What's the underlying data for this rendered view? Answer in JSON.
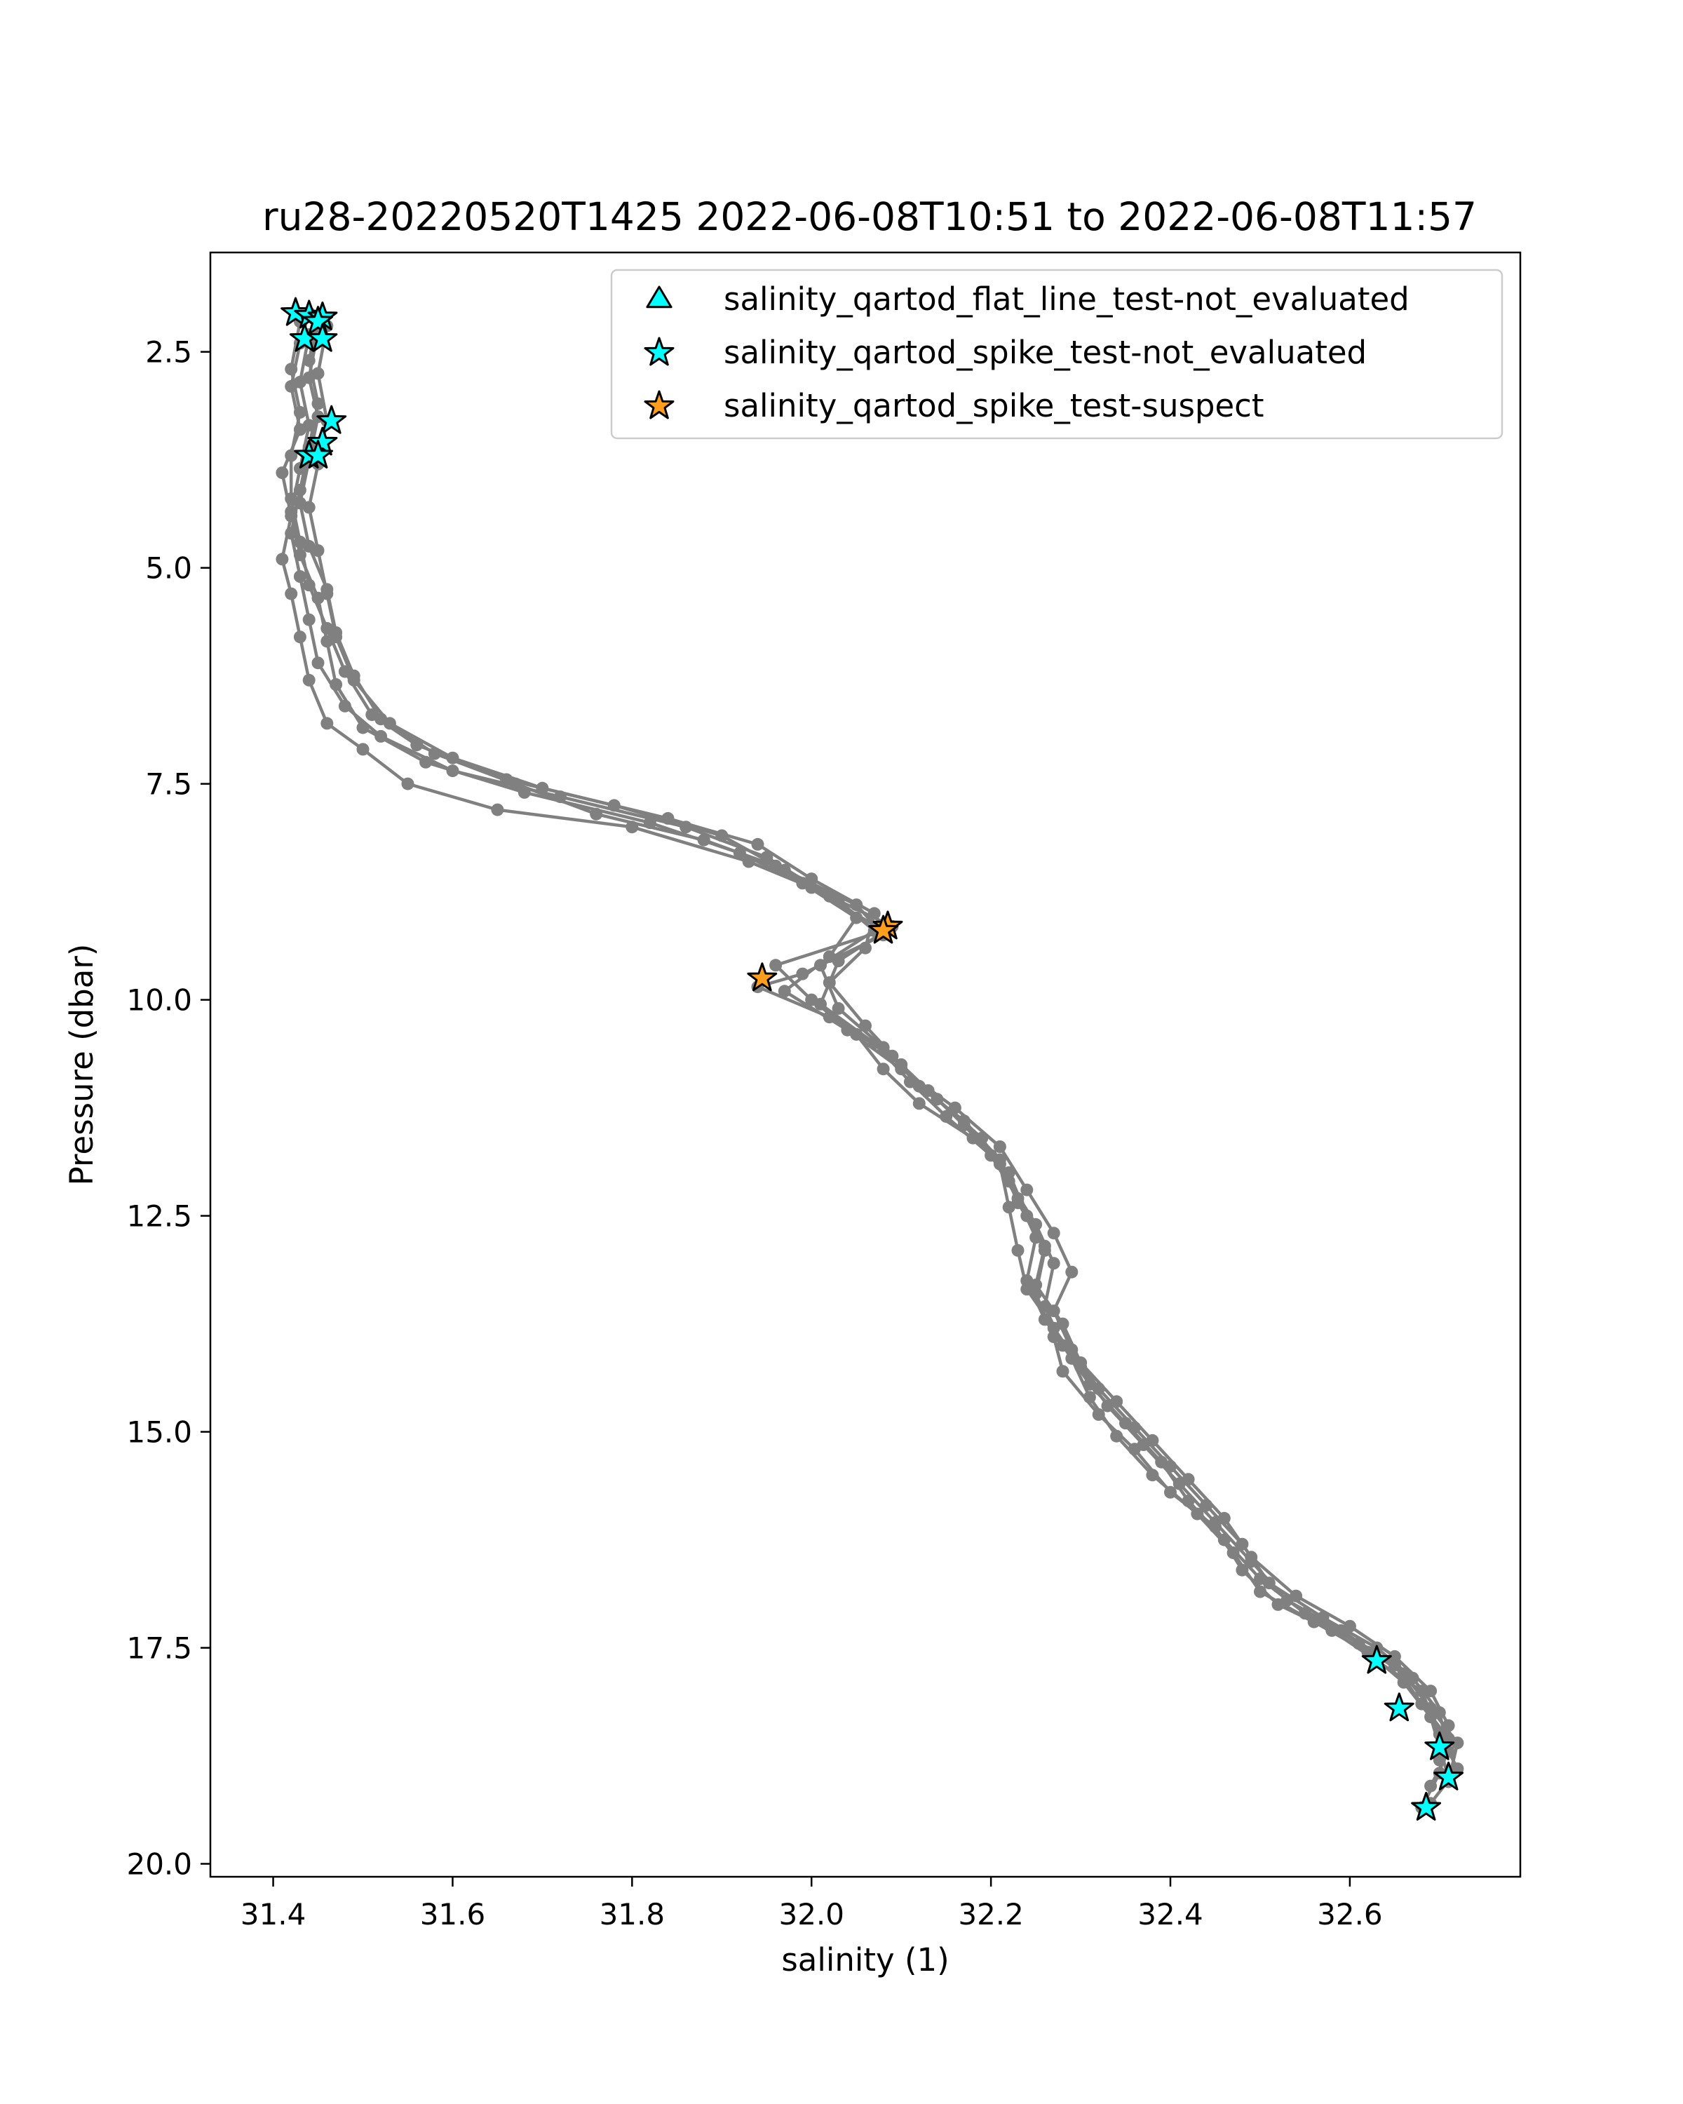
{
  "chart_data": {
    "type": "scatter",
    "title": "ru28-20220520T1425 2022-06-08T10:51 to 2022-06-08T11:57",
    "xlabel": "salinity (1)",
    "ylabel": "Pressure (dbar)",
    "xlim": [
      31.33,
      32.79
    ],
    "ylim": [
      20.15,
      1.35
    ],
    "y_inverted": true,
    "grid": false,
    "legend_position": "top-right",
    "x_ticks": [
      "31.4",
      "31.6",
      "31.8",
      "32.0",
      "32.2",
      "32.4",
      "32.6"
    ],
    "y_ticks": [
      "2.5",
      "5.0",
      "7.5",
      "10.0",
      "12.5",
      "15.0",
      "17.5",
      "20.0"
    ],
    "colors": {
      "profile_line": "#808080",
      "not_evaluated": "#00ffff",
      "suspect": "#ff9e1c",
      "marker_edge": "#000000"
    },
    "legend": [
      {
        "label": "salinity_qartod_flat_line_test-not_evaluated",
        "marker": "triangle",
        "color": "#00ffff"
      },
      {
        "label": "salinity_qartod_spike_test-not_evaluated",
        "marker": "star",
        "color": "#00ffff"
      },
      {
        "label": "salinity_qartod_spike_test-suspect",
        "marker": "star",
        "color": "#ff9e1c"
      }
    ],
    "profiles": [
      [
        [
          31.44,
          2.05
        ],
        [
          31.43,
          2.4
        ],
        [
          31.42,
          2.9
        ],
        [
          31.43,
          3.4
        ],
        [
          31.41,
          3.9
        ],
        [
          31.42,
          4.4
        ],
        [
          31.41,
          4.9
        ],
        [
          31.42,
          5.3
        ],
        [
          31.43,
          5.8
        ],
        [
          31.44,
          6.3
        ],
        [
          31.46,
          6.8
        ],
        [
          31.5,
          7.1
        ],
        [
          31.55,
          7.5
        ],
        [
          31.65,
          7.8
        ],
        [
          31.8,
          8.0
        ],
        [
          31.93,
          8.4
        ],
        [
          32.0,
          8.7
        ],
        [
          32.08,
          9.2
        ],
        [
          31.96,
          9.6
        ],
        [
          32.0,
          10.0
        ],
        [
          32.05,
          10.4
        ],
        [
          32.08,
          10.8
        ],
        [
          32.12,
          11.2
        ],
        [
          32.18,
          11.6
        ],
        [
          32.22,
          12.0
        ],
        [
          32.24,
          12.5
        ],
        [
          32.26,
          12.9
        ],
        [
          32.25,
          13.4
        ],
        [
          32.27,
          13.9
        ],
        [
          32.28,
          14.3
        ],
        [
          32.32,
          14.8
        ],
        [
          32.36,
          15.2
        ],
        [
          32.4,
          15.7
        ],
        [
          32.45,
          16.1
        ],
        [
          32.48,
          16.6
        ],
        [
          32.52,
          17.0
        ],
        [
          32.58,
          17.3
        ],
        [
          32.63,
          17.65
        ],
        [
          32.68,
          18.0
        ],
        [
          32.7,
          18.5
        ],
        [
          32.72,
          18.9
        ],
        [
          32.69,
          19.3
        ]
      ],
      [
        [
          31.45,
          2.1
        ],
        [
          31.44,
          2.6
        ],
        [
          31.45,
          3.1
        ],
        [
          31.44,
          3.6
        ],
        [
          31.43,
          4.1
        ],
        [
          31.42,
          4.6
        ],
        [
          31.43,
          5.1
        ],
        [
          31.44,
          5.6
        ],
        [
          31.45,
          6.1
        ],
        [
          31.48,
          6.6
        ],
        [
          31.52,
          6.95
        ],
        [
          31.6,
          7.35
        ],
        [
          31.72,
          7.65
        ],
        [
          31.86,
          8.0
        ],
        [
          31.95,
          8.35
        ],
        [
          32.02,
          8.8
        ],
        [
          32.09,
          9.15
        ],
        [
          32.03,
          9.55
        ],
        [
          32.01,
          10.05
        ],
        [
          32.07,
          10.5
        ],
        [
          32.11,
          10.95
        ],
        [
          32.15,
          11.35
        ],
        [
          32.2,
          11.8
        ],
        [
          32.23,
          12.3
        ],
        [
          32.25,
          12.75
        ],
        [
          32.24,
          13.25
        ],
        [
          32.26,
          13.7
        ],
        [
          32.29,
          14.15
        ],
        [
          32.31,
          14.6
        ],
        [
          32.34,
          15.05
        ],
        [
          32.38,
          15.5
        ],
        [
          32.43,
          15.95
        ],
        [
          32.47,
          16.4
        ],
        [
          32.5,
          16.85
        ],
        [
          32.56,
          17.2
        ],
        [
          32.62,
          17.55
        ],
        [
          32.66,
          17.9
        ],
        [
          32.69,
          18.3
        ],
        [
          32.7,
          18.65
        ],
        [
          32.71,
          19.0
        ]
      ],
      [
        [
          31.43,
          2.15
        ],
        [
          31.42,
          2.7
        ],
        [
          31.43,
          3.2
        ],
        [
          31.42,
          3.7
        ],
        [
          31.42,
          4.2
        ],
        [
          31.43,
          4.7
        ],
        [
          31.44,
          5.2
        ],
        [
          31.46,
          5.7
        ],
        [
          31.48,
          6.2
        ],
        [
          31.51,
          6.7
        ],
        [
          31.56,
          7.05
        ],
        [
          31.66,
          7.45
        ],
        [
          31.78,
          7.75
        ],
        [
          31.9,
          8.1
        ],
        [
          31.97,
          8.5
        ],
        [
          32.05,
          8.9
        ],
        [
          32.08,
          9.25
        ],
        [
          31.99,
          9.7
        ],
        [
          31.94,
          9.85
        ],
        [
          32.02,
          10.2
        ],
        [
          32.09,
          10.65
        ],
        [
          32.13,
          11.05
        ],
        [
          32.17,
          11.45
        ],
        [
          32.21,
          11.9
        ],
        [
          32.22,
          12.4
        ],
        [
          32.23,
          12.9
        ],
        [
          32.24,
          13.35
        ],
        [
          32.27,
          13.8
        ],
        [
          32.3,
          14.25
        ],
        [
          32.33,
          14.7
        ],
        [
          32.37,
          15.15
        ],
        [
          32.41,
          15.6
        ],
        [
          32.45,
          16.05
        ],
        [
          32.49,
          16.5
        ],
        [
          32.53,
          16.95
        ],
        [
          32.59,
          17.3
        ],
        [
          32.65,
          17.7
        ],
        [
          32.68,
          18.15
        ],
        [
          32.71,
          18.55
        ],
        [
          32.7,
          18.95
        ],
        [
          32.68,
          19.35
        ]
      ],
      [
        [
          31.46,
          2.2
        ],
        [
          31.45,
          2.75
        ],
        [
          31.46,
          3.3
        ],
        [
          31.45,
          3.8
        ],
        [
          31.44,
          4.3
        ],
        [
          31.45,
          4.8
        ],
        [
          31.46,
          5.3
        ],
        [
          31.47,
          5.8
        ],
        [
          31.49,
          6.3
        ],
        [
          31.53,
          6.8
        ],
        [
          31.6,
          7.2
        ],
        [
          31.7,
          7.55
        ],
        [
          31.84,
          7.9
        ],
        [
          31.94,
          8.2
        ],
        [
          32.0,
          8.6
        ],
        [
          32.07,
          9.0
        ],
        [
          32.06,
          9.4
        ],
        [
          32.02,
          9.8
        ],
        [
          32.06,
          10.3
        ],
        [
          32.1,
          10.75
        ],
        [
          32.14,
          11.15
        ],
        [
          32.19,
          11.6
        ],
        [
          32.22,
          12.1
        ],
        [
          32.25,
          12.6
        ],
        [
          32.27,
          13.05
        ],
        [
          32.26,
          13.55
        ],
        [
          32.28,
          14.0
        ],
        [
          32.31,
          14.45
        ],
        [
          32.35,
          14.9
        ],
        [
          32.39,
          15.35
        ],
        [
          32.42,
          15.8
        ],
        [
          32.46,
          16.25
        ],
        [
          32.5,
          16.7
        ],
        [
          32.55,
          17.1
        ],
        [
          32.61,
          17.45
        ],
        [
          32.66,
          17.8
        ],
        [
          32.69,
          18.2
        ],
        [
          32.72,
          18.6
        ],
        [
          32.71,
          19.05
        ]
      ],
      [
        [
          31.44,
          2.3
        ],
        [
          31.43,
          2.85
        ],
        [
          31.44,
          3.35
        ],
        [
          31.43,
          3.85
        ],
        [
          31.42,
          4.35
        ],
        [
          31.43,
          4.85
        ],
        [
          31.45,
          5.35
        ],
        [
          31.46,
          5.85
        ],
        [
          31.47,
          6.35
        ],
        [
          31.5,
          6.85
        ],
        [
          31.57,
          7.25
        ],
        [
          31.68,
          7.6
        ],
        [
          31.82,
          7.95
        ],
        [
          31.92,
          8.3
        ],
        [
          31.99,
          8.65
        ],
        [
          32.05,
          9.05
        ],
        [
          32.02,
          9.5
        ],
        [
          31.97,
          9.9
        ],
        [
          32.04,
          10.35
        ],
        [
          32.1,
          10.8
        ],
        [
          32.16,
          11.25
        ],
        [
          32.21,
          11.7
        ],
        [
          32.24,
          12.2
        ],
        [
          32.27,
          12.7
        ],
        [
          32.29,
          13.15
        ],
        [
          32.27,
          13.6
        ],
        [
          32.29,
          14.05
        ],
        [
          32.32,
          14.5
        ],
        [
          32.36,
          14.95
        ],
        [
          32.4,
          15.4
        ],
        [
          32.44,
          15.85
        ],
        [
          32.48,
          16.3
        ],
        [
          32.51,
          16.75
        ],
        [
          32.57,
          17.15
        ],
        [
          32.63,
          17.5
        ],
        [
          32.67,
          17.85
        ],
        [
          32.7,
          18.25
        ],
        [
          32.71,
          18.7
        ],
        [
          32.69,
          19.1
        ]
      ],
      [
        [
          31.45,
          2.25
        ],
        [
          31.44,
          2.8
        ],
        [
          31.45,
          3.25
        ],
        [
          31.44,
          3.75
        ],
        [
          31.43,
          4.25
        ],
        [
          31.44,
          4.75
        ],
        [
          31.46,
          5.25
        ],
        [
          31.47,
          5.75
        ],
        [
          31.49,
          6.25
        ],
        [
          31.52,
          6.75
        ],
        [
          31.58,
          7.15
        ],
        [
          31.67,
          7.5
        ],
        [
          31.76,
          7.85
        ],
        [
          31.88,
          8.15
        ],
        [
          31.96,
          8.45
        ],
        [
          32.03,
          8.85
        ],
        [
          32.07,
          9.2
        ],
        [
          32.01,
          9.6
        ],
        [
          32.03,
          10.1
        ],
        [
          32.08,
          10.55
        ],
        [
          32.12,
          11.0
        ],
        [
          32.17,
          11.4
        ],
        [
          32.21,
          11.85
        ],
        [
          32.23,
          12.35
        ],
        [
          32.26,
          12.85
        ],
        [
          32.25,
          13.3
        ],
        [
          32.28,
          13.75
        ],
        [
          32.3,
          14.2
        ],
        [
          32.34,
          14.65
        ],
        [
          32.38,
          15.1
        ],
        [
          32.42,
          15.55
        ],
        [
          32.46,
          16.0
        ],
        [
          32.49,
          16.45
        ],
        [
          32.54,
          16.9
        ],
        [
          32.6,
          17.25
        ],
        [
          32.65,
          17.6
        ],
        [
          32.69,
          18.0
        ],
        [
          32.71,
          18.4
        ],
        [
          32.7,
          18.8
        ]
      ]
    ],
    "not_evaluated_stars": [
      [
        31.425,
        2.05
      ],
      [
        31.44,
        2.08
      ],
      [
        31.455,
        2.1
      ],
      [
        31.45,
        2.15
      ],
      [
        31.435,
        2.35
      ],
      [
        31.455,
        2.35
      ],
      [
        31.465,
        3.3
      ],
      [
        31.455,
        3.55
      ],
      [
        31.44,
        3.7
      ],
      [
        31.45,
        3.7
      ],
      [
        32.63,
        17.65
      ],
      [
        32.655,
        18.2
      ],
      [
        32.7,
        18.65
      ],
      [
        32.71,
        19.0
      ],
      [
        32.685,
        19.35
      ]
    ],
    "suspect_stars": [
      [
        32.085,
        9.15
      ],
      [
        32.08,
        9.2
      ],
      [
        31.945,
        9.75
      ]
    ]
  }
}
